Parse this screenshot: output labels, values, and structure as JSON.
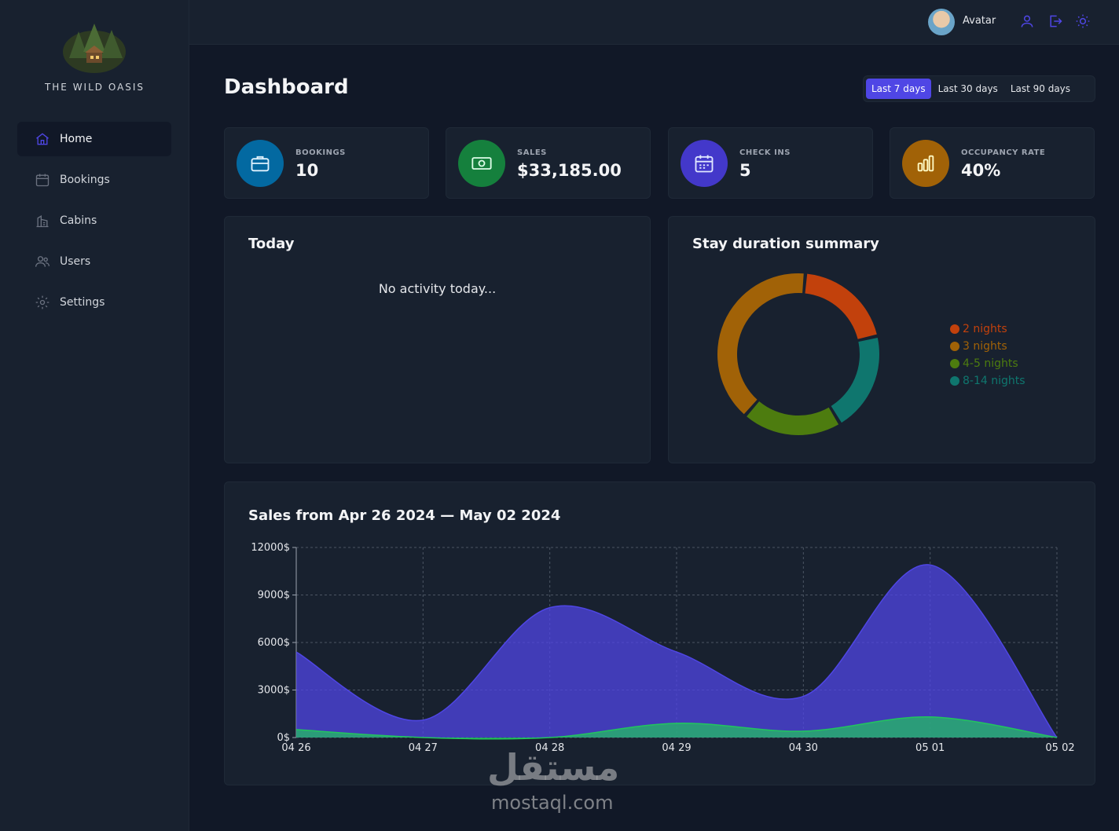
{
  "sidebar": {
    "logo_text": "THE WILD OASIS",
    "items": [
      {
        "label": "Home",
        "icon": "home-icon",
        "active": true
      },
      {
        "label": "Bookings",
        "icon": "calendar-icon",
        "active": false
      },
      {
        "label": "Cabins",
        "icon": "cabin-icon",
        "active": false
      },
      {
        "label": "Users",
        "icon": "users-icon",
        "active": false
      },
      {
        "label": "Settings",
        "icon": "gear-icon",
        "active": false
      }
    ]
  },
  "header": {
    "avatar_name": "Avatar",
    "icons": [
      "user-icon",
      "logout-icon",
      "sun-icon"
    ],
    "accent": "#4f46e5"
  },
  "main": {
    "title": "Dashboard",
    "filters": [
      {
        "label": "Last 7 days",
        "active": true
      },
      {
        "label": "Last 30 days",
        "active": false
      },
      {
        "label": "Last 90 days",
        "active": false
      }
    ],
    "stats": [
      {
        "label": "BOOKINGS",
        "value": "10",
        "icon": "briefcase-icon",
        "color": "#0369a1"
      },
      {
        "label": "SALES",
        "value": "$33,185.00",
        "icon": "banknote-icon",
        "color": "#15803d"
      },
      {
        "label": "CHECK INS",
        "value": "5",
        "icon": "calendar-days-icon",
        "color": "#4338ca"
      },
      {
        "label": "OCCUPANCY RATE",
        "value": "40%",
        "icon": "bar-chart-icon",
        "color": "#a16207"
      }
    ],
    "today": {
      "title": "Today",
      "empty_text": "No activity today..."
    },
    "stay_duration": {
      "title": "Stay duration summary",
      "legend": [
        {
          "label": "2 nights",
          "color": "#c2410c"
        },
        {
          "label": "3 nights",
          "color": "#a16207"
        },
        {
          "label": "4-5 nights",
          "color": "#4d7c0f"
        },
        {
          "label": "8-14 nights",
          "color": "#0f766e"
        }
      ]
    },
    "sales": {
      "title": "Sales from Apr 26 2024 — May 02 2024"
    }
  },
  "chart_data": [
    {
      "type": "pie",
      "title": "Stay duration summary",
      "categories": [
        "2 nights",
        "3 nights",
        "4-5 nights",
        "8-14 nights"
      ],
      "values": [
        2,
        4,
        2,
        2
      ],
      "colors": [
        "#c2410c",
        "#a16207",
        "#4d7c0f",
        "#0f766e"
      ],
      "order": [
        "2 nights",
        "8-14 nights",
        "4-5 nights",
        "3 nights"
      ],
      "legend": "right"
    },
    {
      "type": "area",
      "title": "Sales from Apr 26 2024 — May 02 2024",
      "categories": [
        "04 26",
        "04 27",
        "04 28",
        "04 29",
        "04 30",
        "05 01",
        "05 02"
      ],
      "series": [
        {
          "name": "",
          "values": [
            5400,
            1100,
            8200,
            5400,
            2600,
            10900,
            0
          ],
          "color": "#4f46e5"
        },
        {
          "name": "",
          "values": [
            500,
            0,
            0,
            900,
            400,
            1300,
            0
          ],
          "color": "#22c55e"
        }
      ],
      "yticks": [
        "0$",
        "3000$",
        "6000$",
        "9000$",
        "12000$"
      ],
      "ylim": [
        0,
        12000
      ],
      "grid": true
    }
  ],
  "watermark": {
    "arabic": "مستقل",
    "latin": "mostaql.com"
  }
}
